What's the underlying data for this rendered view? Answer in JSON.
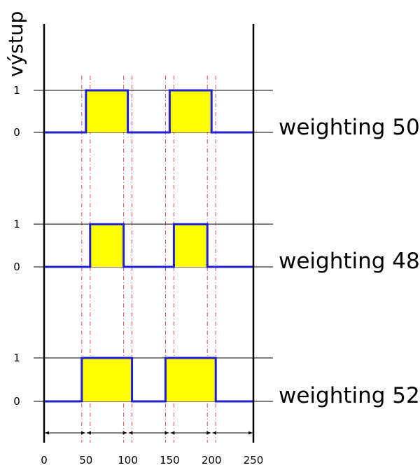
{
  "y_axis_title": "výstup",
  "level_labels": [
    "1",
    "0"
  ],
  "x_tick_labels": [
    "0",
    "50",
    "100",
    "150",
    "200",
    "250"
  ],
  "x_ticks": [
    0,
    50,
    100,
    150,
    200,
    250
  ],
  "colors": {
    "signal": "#1f1fd6",
    "fill": "#ffff00",
    "guide": "#e05050",
    "axis": "#000000"
  },
  "reference_times": [
    45,
    55,
    95,
    105,
    145,
    155,
    195,
    205
  ],
  "traces": [
    {
      "label": "weighting 50",
      "pulses": [
        [
          50,
          100
        ],
        [
          150,
          200
        ]
      ]
    },
    {
      "label": "weighting 48",
      "pulses": [
        [
          55,
          95
        ],
        [
          155,
          195
        ]
      ]
    },
    {
      "label": "weighting 52",
      "pulses": [
        [
          45,
          105
        ],
        [
          145,
          205
        ]
      ]
    }
  ]
}
